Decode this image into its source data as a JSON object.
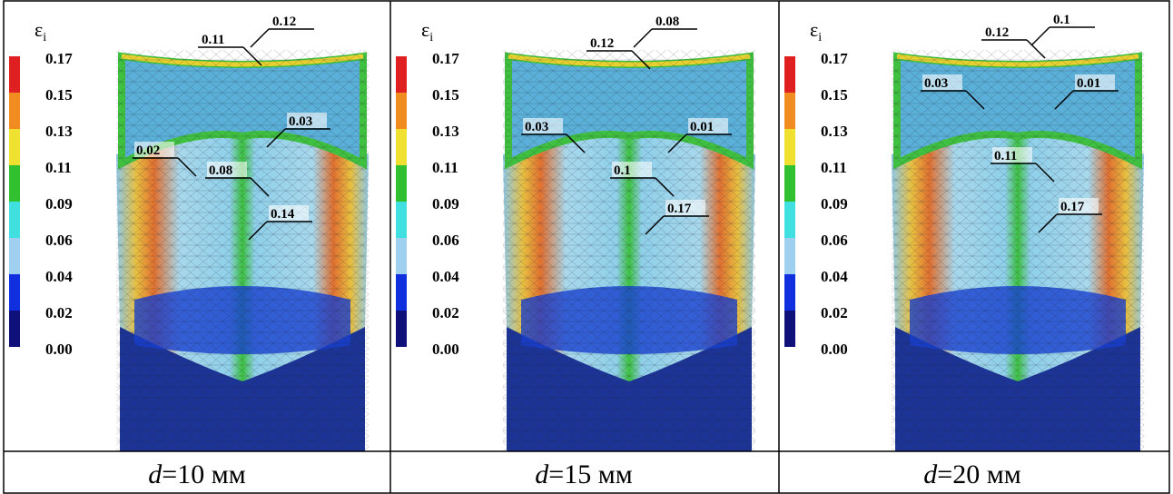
{
  "scale": {
    "symbol": "ε",
    "subscript": "i",
    "labels": [
      "0.17",
      "0.15",
      "0.13",
      "0.11",
      "0.09",
      "0.06",
      "0.04",
      "0.02",
      "0.00"
    ]
  },
  "panels": [
    {
      "annotations": [
        "0.11",
        "0.12",
        "0.02",
        "0.03",
        "0.08",
        "0.14"
      ],
      "caption": {
        "var": "d",
        "text": "=10 мм"
      }
    },
    {
      "annotations": [
        "0.12",
        "0.08",
        "0.03",
        "0.01",
        "0.1",
        "0.17"
      ],
      "caption": {
        "var": "d",
        "text": "=15 мм"
      }
    },
    {
      "annotations": [
        "0.12",
        "0.1",
        "0.03",
        "0.01",
        "0.11",
        "0.17"
      ],
      "caption": {
        "var": "d",
        "text": "=20 мм"
      }
    }
  ]
}
